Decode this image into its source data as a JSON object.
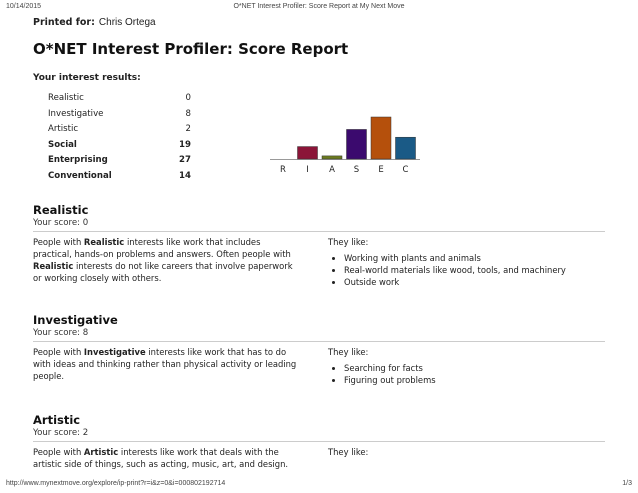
{
  "browser": {
    "date": "10/14/2015",
    "page_title": "O*NET Interest Profiler: Score Report at My Next Move",
    "url": "http://www.mynextmove.org/explore/ip-print?r=i&z=0&i=000802192714",
    "page": "1/3"
  },
  "report": {
    "printed_label": "Printed for:",
    "printed_name": "Chris Ortega",
    "title": "O*NET Interest Profiler: Score Report",
    "results_label": "Your interest results:"
  },
  "scores": [
    {
      "label": "Realistic",
      "value": "0",
      "bold": false
    },
    {
      "label": "Investigative",
      "value": "8",
      "bold": false
    },
    {
      "label": "Artistic",
      "value": "2",
      "bold": false
    },
    {
      "label": "Social",
      "value": "19",
      "bold": true
    },
    {
      "label": "Enterprising",
      "value": "27",
      "bold": true
    },
    {
      "label": "Conventional",
      "value": "14",
      "bold": true
    }
  ],
  "chart_data": {
    "type": "bar",
    "categories": [
      "R",
      "I",
      "A",
      "S",
      "E",
      "C"
    ],
    "values": [
      0,
      8,
      2,
      19,
      27,
      14
    ],
    "colors": [
      "#8b1538",
      "#8b1538",
      "#6b7a1f",
      "#3b0a6e",
      "#b5500c",
      "#1a5a86"
    ],
    "ylim": [
      0,
      27
    ]
  },
  "sections": [
    {
      "name": "Realistic",
      "score": "Your score: 0",
      "desc_pre": "People with ",
      "desc_bold": "Realistic",
      "desc_lines": [
        "interests like work that includes",
        "practical, hands-on problems and answers. Often people with"
      ],
      "desc_bold2": "Realistic",
      "desc_rest": [
        "interests do not like careers that involve paperwork",
        "or working closely with others."
      ],
      "like_label": "They like:",
      "likes": [
        "Working with plants and animals",
        "Real-world materials like wood, tools, and machinery",
        "Outside work"
      ]
    },
    {
      "name": "Investigative",
      "score": "Your score: 8",
      "desc_pre": "People with ",
      "desc_bold": "Investigative",
      "desc_lines": [
        "interests like work that has to do",
        "with ideas and thinking rather than physical activity or leading",
        "people."
      ],
      "like_label": "They like:",
      "likes": [
        "Searching for facts",
        "Figuring out problems"
      ]
    },
    {
      "name": "Artistic",
      "score": "Your score: 2",
      "desc_pre": "People with ",
      "desc_bold": "Artistic",
      "desc_lines": [
        "interests like work that deals with the",
        "artistic side of things, such as acting, music, art, and design."
      ],
      "like_label": "They like:",
      "likes": []
    }
  ]
}
